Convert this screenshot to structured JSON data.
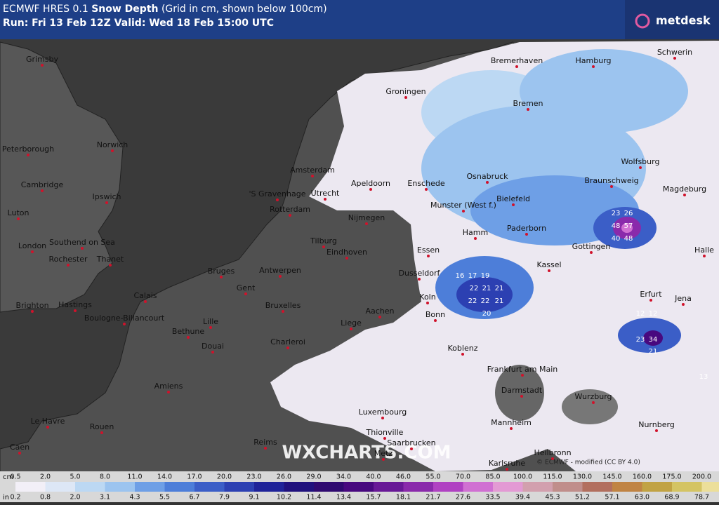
{
  "header": {
    "title_prefix": "ECMWF HRES 0.1",
    "title_bold": "Snow Depth",
    "title_suffix": "(Grid in cm, shown below 100cm)",
    "subtitle": "Run: Fri 13 Feb 12Z Valid: Wed 18 Feb 15:00 UTC",
    "logo": "metdesk"
  },
  "watermark": "WXCHARTS.COM",
  "copyright": "© ECMWF - modified (CC BY 4.0)",
  "cities": [
    "Grimsby",
    "Peterborough",
    "Norwich",
    "Cambridge",
    "Ipswich",
    "Luton",
    "Southend on Sea",
    "London",
    "Rochester",
    "Thanet",
    "Brighton",
    "Hastings",
    "Calais",
    "Boulogne-Billancourt",
    "Bethune",
    "Lille",
    "Douai",
    "Amiens",
    "Le Havre",
    "Rouen",
    "Caen",
    "Reims",
    "Bruges",
    "Gent",
    "Antwerpen",
    "Bruxelles",
    "Charleroi",
    "Liege",
    "Aachen",
    "Tilburg",
    "Eindhoven",
    "Nijmegen",
    "Rotterdam",
    "'S Gravenhage",
    "Utrecht",
    "Amsterdam",
    "Apeldoorn",
    "Enschede",
    "Groningen",
    "Bremerhaven",
    "Bremen",
    "Hamburg",
    "Schwerin",
    "Osnabruck",
    "Bielefeld",
    "Munster (West f.)",
    "Hamm",
    "Paderborn",
    "Wolfsburg",
    "Braunschweig",
    "Magdeburg",
    "Gottingen",
    "Halle",
    "Kassel",
    "Essen",
    "Dusseldorf",
    "Koln",
    "Bonn",
    "Koblenz",
    "Erfurt",
    "Jena",
    "Frankfurt am Main",
    "Darmstadt",
    "Wurzburg",
    "Mannheim",
    "Nurnberg",
    "Luxembourg",
    "Thionville",
    "Saarbrucken",
    "Metz",
    "Heilbronn",
    "Karlsruhe"
  ],
  "grid_values": [
    "23",
    "26",
    "48",
    "57",
    "40",
    "48",
    "16",
    "17",
    "19",
    "22",
    "21",
    "21",
    "22",
    "22",
    "21",
    "20",
    "23",
    "34",
    "21",
    "12",
    "12",
    "13"
  ],
  "legend": {
    "unit_top": "cm",
    "unit_bottom": "in",
    "cm": [
      "0.5",
      "2.0",
      "5.0",
      "8.0",
      "11.0",
      "14.0",
      "17.0",
      "20.0",
      "23.0",
      "26.0",
      "29.0",
      "34.0",
      "40.0",
      "46.0",
      "55.0",
      "70.0",
      "85.0",
      "100.0",
      "115.0",
      "130.0",
      "145.0",
      "160.0",
      "175.0",
      "200.0"
    ],
    "in": [
      "0.2",
      "0.8",
      "2.0",
      "3.1",
      "4.3",
      "5.5",
      "6.7",
      "7.9",
      "9.1",
      "10.2",
      "11.4",
      "13.4",
      "15.7",
      "18.1",
      "21.7",
      "27.6",
      "33.5",
      "39.4",
      "45.3",
      "51.2",
      "57.1",
      "63.0",
      "68.9",
      "78.7"
    ],
    "colors": [
      "#f2eff7",
      "#dde7f6",
      "#bcd8f3",
      "#9cc4ef",
      "#6e9fe6",
      "#4d7ed9",
      "#3b5ec7",
      "#2c40b2",
      "#1f2399",
      "#20117d",
      "#2f0a70",
      "#48097f",
      "#681996",
      "#8a2aab",
      "#b042c2",
      "#d070d2",
      "#e39ad4",
      "#d2a0ae",
      "#c08e8b",
      "#b26f5e",
      "#c08443",
      "#c1a343",
      "#d4c463",
      "#ecdf9a"
    ]
  }
}
